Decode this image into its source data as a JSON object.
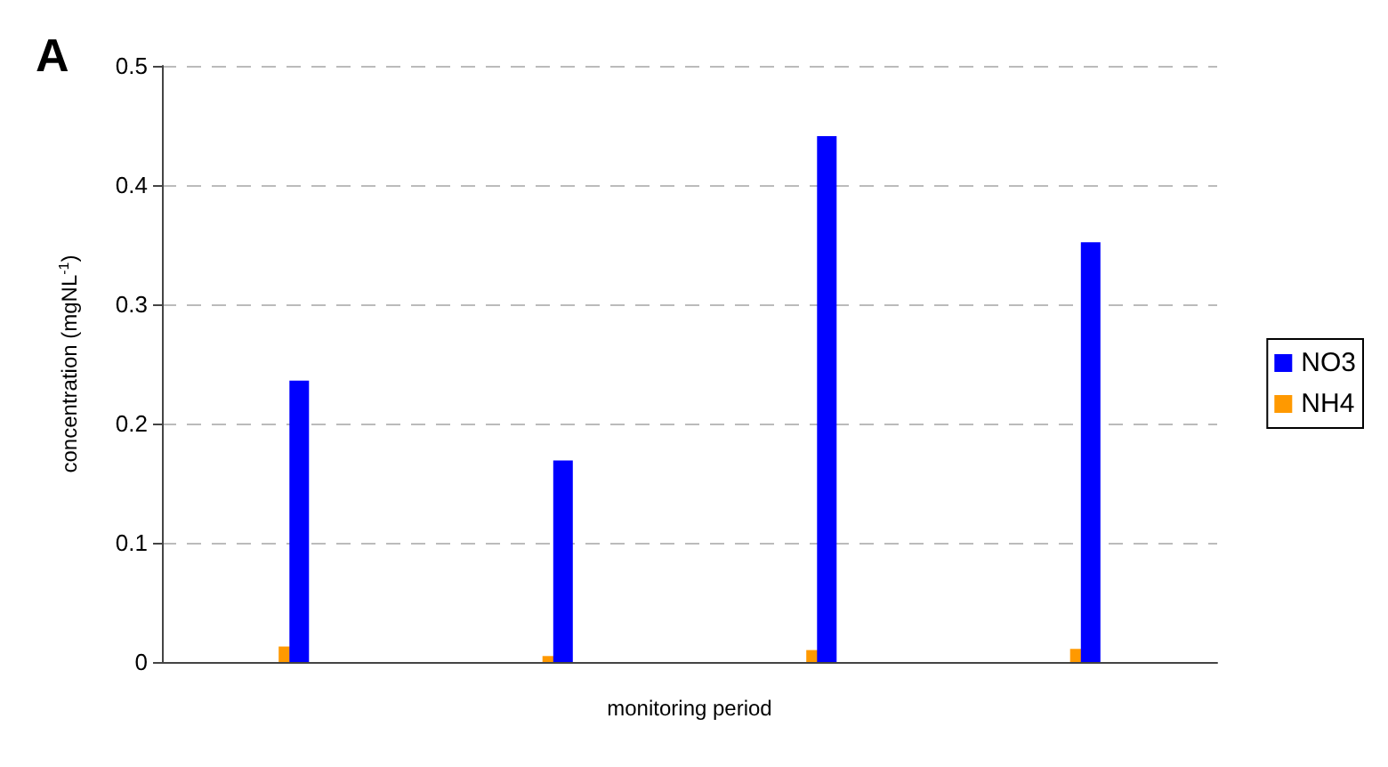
{
  "chart_data": {
    "type": "bar",
    "xlabel": "monitoring period",
    "ylabel": "concentration (mgNL$^{-1}$)",
    "annotations": [
      "A"
    ],
    "categories": [
      null,
      null,
      null,
      null
    ],
    "series": [
      {
        "name": "NO3",
        "color": "#0000ff",
        "values": [
          0.236,
          0.169,
          0.441,
          0.352
        ]
      },
      {
        "name": "NH4",
        "color": "#ff9900",
        "values": [
          0.013,
          0.005,
          0.01,
          0.011
        ]
      }
    ],
    "ylim": [
      0,
      0.5
    ],
    "yticks": [
      0,
      0.1,
      0.2,
      0.3,
      0.4,
      0.5
    ],
    "grid": "y",
    "legend": "right"
  }
}
